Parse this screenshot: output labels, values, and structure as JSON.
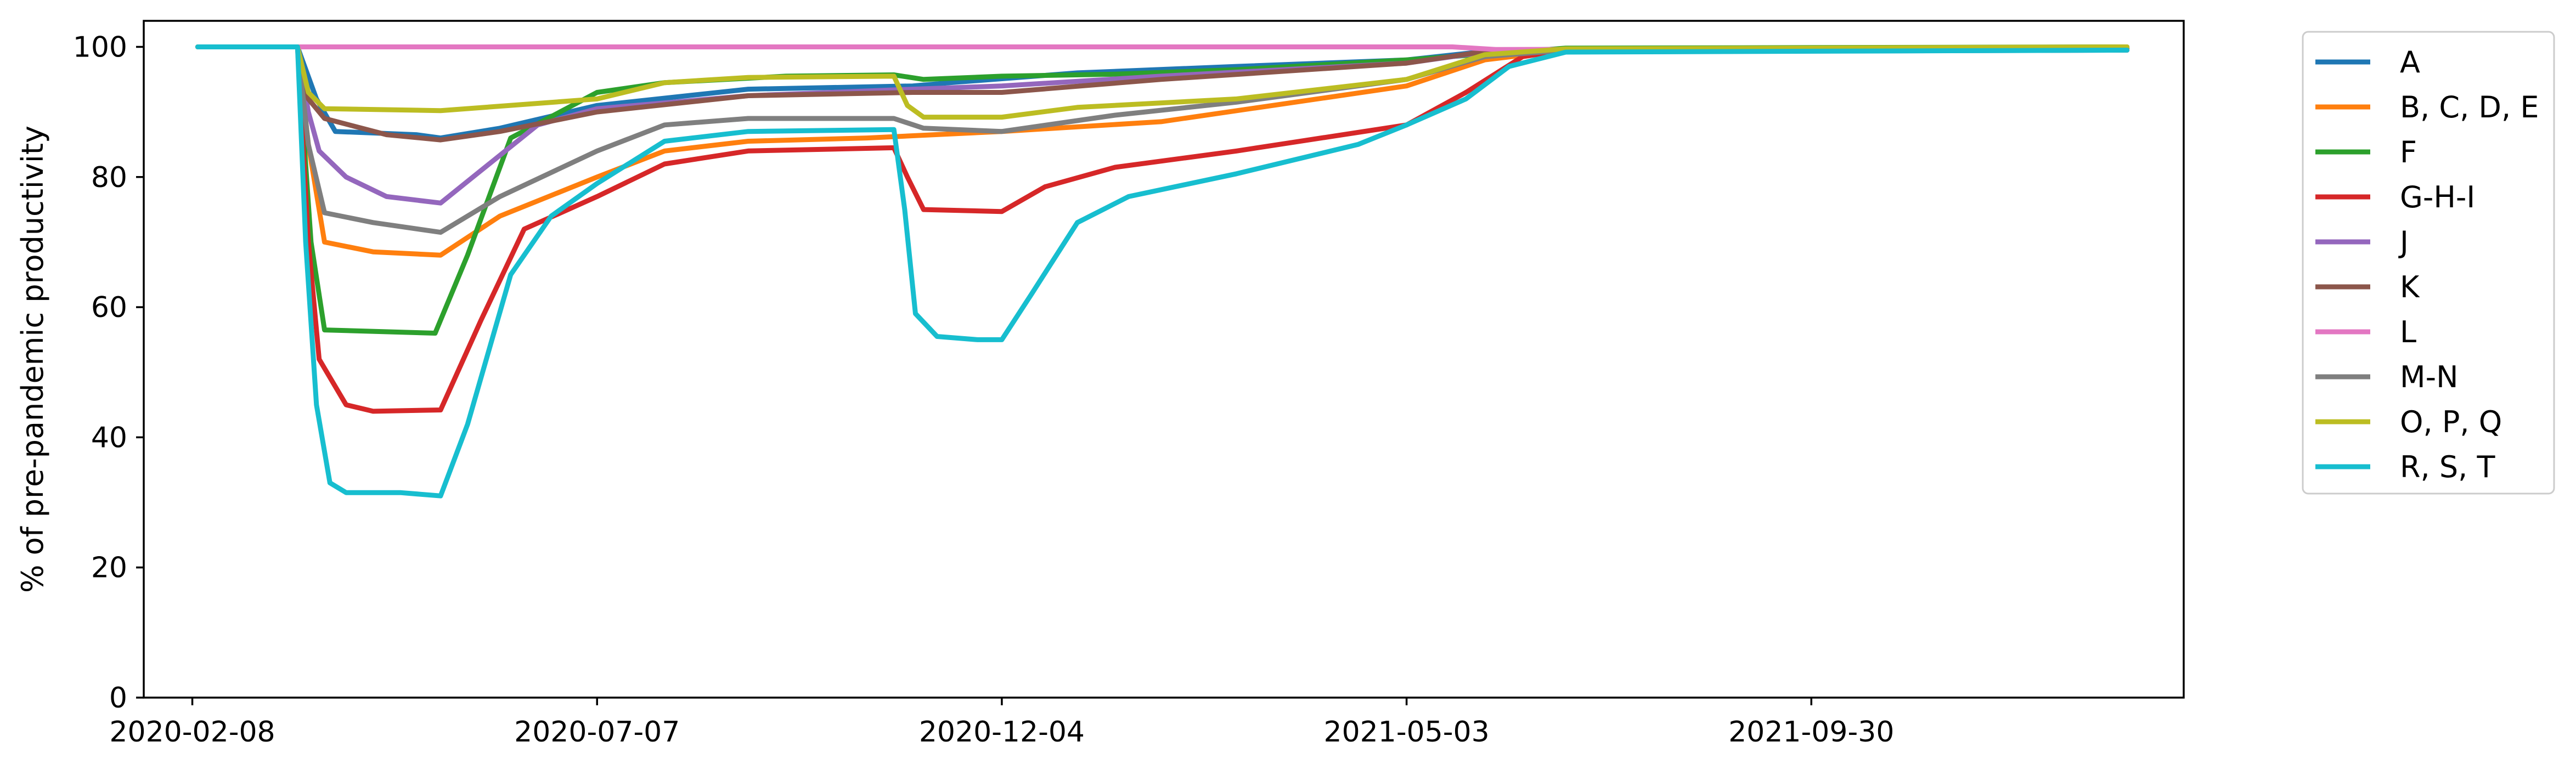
{
  "chart_data": {
    "type": "line",
    "title": "",
    "xlabel": "",
    "ylabel": "% of pre-pandemic productivity",
    "ylim": [
      0,
      104
    ],
    "xlim": [
      "2020-01-21",
      "2022-02-15"
    ],
    "grid": false,
    "legend_position": "outside-right",
    "x_ticks": [
      "2020-02-08",
      "2020-07-07",
      "2020-12-04",
      "2021-05-03",
      "2021-09-30"
    ],
    "y_ticks": [
      0,
      20,
      40,
      60,
      80,
      100
    ],
    "series": [
      {
        "name": "A",
        "color": "#1f77b4",
        "points": [
          [
            "2020-02-10",
            100
          ],
          [
            "2020-03-18",
            100
          ],
          [
            "2020-03-25",
            92
          ],
          [
            "2020-04-01",
            87
          ],
          [
            "2020-05-01",
            86.5
          ],
          [
            "2020-05-10",
            86
          ],
          [
            "2020-06-01",
            87.5
          ],
          [
            "2020-07-07",
            91
          ],
          [
            "2020-09-01",
            93.5
          ],
          [
            "2020-11-01",
            94
          ],
          [
            "2020-11-15",
            94.5
          ],
          [
            "2021-01-01",
            96
          ],
          [
            "2021-03-01",
            97
          ],
          [
            "2021-05-03",
            98
          ],
          [
            "2021-06-01",
            99.3
          ],
          [
            "2021-07-01",
            99.7
          ],
          [
            "2022-01-25",
            99.7
          ]
        ]
      },
      {
        "name": "B, C, D, E",
        "color": "#ff7f0e",
        "points": [
          [
            "2020-02-10",
            100
          ],
          [
            "2020-03-18",
            100
          ],
          [
            "2020-03-22",
            85
          ],
          [
            "2020-03-28",
            70
          ],
          [
            "2020-04-15",
            68.5
          ],
          [
            "2020-05-10",
            68
          ],
          [
            "2020-06-01",
            74
          ],
          [
            "2020-07-07",
            80
          ],
          [
            "2020-08-01",
            84
          ],
          [
            "2020-09-01",
            85.5
          ],
          [
            "2020-10-15",
            86
          ],
          [
            "2020-12-04",
            87
          ],
          [
            "2021-02-01",
            88.5
          ],
          [
            "2021-05-03",
            94
          ],
          [
            "2021-06-01",
            98
          ],
          [
            "2021-07-01",
            99.5
          ],
          [
            "2022-01-25",
            99.8
          ]
        ]
      },
      {
        "name": "F",
        "color": "#2ca02c",
        "points": [
          [
            "2020-02-10",
            100
          ],
          [
            "2020-03-18",
            100
          ],
          [
            "2020-03-23",
            70
          ],
          [
            "2020-03-28",
            56.5
          ],
          [
            "2020-05-08",
            56
          ],
          [
            "2020-05-20",
            68
          ],
          [
            "2020-06-05",
            86
          ],
          [
            "2020-07-07",
            93
          ],
          [
            "2020-08-01",
            94.5
          ],
          [
            "2020-09-15",
            95.5
          ],
          [
            "2020-10-25",
            95.7
          ],
          [
            "2020-11-05",
            95
          ],
          [
            "2020-12-04",
            95.5
          ],
          [
            "2021-01-15",
            95.8
          ],
          [
            "2021-03-01",
            96.5
          ],
          [
            "2021-05-03",
            98
          ],
          [
            "2021-07-01",
            99.8
          ],
          [
            "2022-01-25",
            100
          ]
        ]
      },
      {
        "name": "G-H-I",
        "color": "#d62728",
        "points": [
          [
            "2020-02-10",
            100
          ],
          [
            "2020-03-18",
            100
          ],
          [
            "2020-03-22",
            70
          ],
          [
            "2020-03-26",
            52
          ],
          [
            "2020-04-05",
            45
          ],
          [
            "2020-04-15",
            44
          ],
          [
            "2020-05-10",
            44.2
          ],
          [
            "2020-05-25",
            58
          ],
          [
            "2020-06-10",
            72
          ],
          [
            "2020-07-07",
            77
          ],
          [
            "2020-08-01",
            82
          ],
          [
            "2020-09-01",
            84
          ],
          [
            "2020-10-25",
            84.5
          ],
          [
            "2020-10-30",
            80
          ],
          [
            "2020-11-05",
            75
          ],
          [
            "2020-12-04",
            74.7
          ],
          [
            "2020-12-20",
            78.5
          ],
          [
            "2021-01-15",
            81.5
          ],
          [
            "2021-03-01",
            84
          ],
          [
            "2021-05-03",
            88
          ],
          [
            "2021-05-25",
            93
          ],
          [
            "2021-06-15",
            98.5
          ],
          [
            "2021-07-01",
            99.5
          ],
          [
            "2022-01-25",
            99.8
          ]
        ]
      },
      {
        "name": "J",
        "color": "#9467bd",
        "points": [
          [
            "2020-02-10",
            100
          ],
          [
            "2020-03-18",
            100
          ],
          [
            "2020-03-22",
            90
          ],
          [
            "2020-03-26",
            84
          ],
          [
            "2020-04-05",
            80
          ],
          [
            "2020-04-20",
            77
          ],
          [
            "2020-05-10",
            76
          ],
          [
            "2020-05-25",
            81
          ],
          [
            "2020-06-15",
            88
          ],
          [
            "2020-07-07",
            90.5
          ],
          [
            "2020-09-01",
            92.5
          ],
          [
            "2020-11-01",
            93.5
          ],
          [
            "2020-12-04",
            94
          ],
          [
            "2021-02-01",
            95.5
          ],
          [
            "2021-05-03",
            97.5
          ],
          [
            "2021-06-01",
            99.2
          ],
          [
            "2022-01-25",
            99.5
          ]
        ]
      },
      {
        "name": "K",
        "color": "#8c564b",
        "points": [
          [
            "2020-02-10",
            100
          ],
          [
            "2020-03-18",
            100
          ],
          [
            "2020-03-22",
            92
          ],
          [
            "2020-03-28",
            89
          ],
          [
            "2020-04-20",
            86.5
          ],
          [
            "2020-05-10",
            85.7
          ],
          [
            "2020-06-01",
            87
          ],
          [
            "2020-07-07",
            90
          ],
          [
            "2020-09-01",
            92.5
          ],
          [
            "2020-11-01",
            93
          ],
          [
            "2020-12-04",
            93
          ],
          [
            "2021-02-01",
            95
          ],
          [
            "2021-05-03",
            97.5
          ],
          [
            "2021-06-01",
            99.3
          ],
          [
            "2022-01-25",
            99.5
          ]
        ]
      },
      {
        "name": "L",
        "color": "#e377c2",
        "points": [
          [
            "2020-02-10",
            100
          ],
          [
            "2021-05-20",
            100
          ],
          [
            "2021-06-05",
            99.6
          ],
          [
            "2022-01-25",
            99.7
          ]
        ]
      },
      {
        "name": "M-N",
        "color": "#7f7f7f",
        "points": [
          [
            "2020-02-10",
            100
          ],
          [
            "2020-03-18",
            100
          ],
          [
            "2020-03-22",
            85
          ],
          [
            "2020-03-28",
            74.5
          ],
          [
            "2020-04-15",
            73
          ],
          [
            "2020-05-10",
            71.5
          ],
          [
            "2020-06-01",
            77
          ],
          [
            "2020-07-07",
            84
          ],
          [
            "2020-08-01",
            88
          ],
          [
            "2020-09-01",
            89
          ],
          [
            "2020-10-25",
            89
          ],
          [
            "2020-11-05",
            87.5
          ],
          [
            "2020-12-04",
            87
          ],
          [
            "2021-01-15",
            89.5
          ],
          [
            "2021-03-01",
            91.5
          ],
          [
            "2021-05-03",
            95
          ],
          [
            "2021-06-01",
            98.5
          ],
          [
            "2021-07-01",
            99.5
          ],
          [
            "2022-01-25",
            99.8
          ]
        ]
      },
      {
        "name": "O, P, Q",
        "color": "#bcbd22",
        "points": [
          [
            "2020-02-10",
            100
          ],
          [
            "2020-03-18",
            100
          ],
          [
            "2020-03-22",
            93
          ],
          [
            "2020-03-28",
            90.5
          ],
          [
            "2020-05-10",
            90.2
          ],
          [
            "2020-07-07",
            92
          ],
          [
            "2020-08-01",
            94.5
          ],
          [
            "2020-09-01",
            95.3
          ],
          [
            "2020-10-25",
            95.5
          ],
          [
            "2020-10-30",
            91
          ],
          [
            "2020-11-05",
            89.2
          ],
          [
            "2020-12-04",
            89.2
          ],
          [
            "2021-01-01",
            90.7
          ],
          [
            "2021-03-01",
            92
          ],
          [
            "2021-05-03",
            95
          ],
          [
            "2021-06-01",
            98.8
          ],
          [
            "2021-07-01",
            99.7
          ],
          [
            "2022-01-25",
            100
          ]
        ]
      },
      {
        "name": "R, S, T",
        "color": "#17becf",
        "points": [
          [
            "2020-02-10",
            100
          ],
          [
            "2020-03-18",
            100
          ],
          [
            "2020-03-21",
            70
          ],
          [
            "2020-03-25",
            45
          ],
          [
            "2020-03-30",
            33
          ],
          [
            "2020-04-05",
            31.5
          ],
          [
            "2020-04-25",
            31.5
          ],
          [
            "2020-05-10",
            31
          ],
          [
            "2020-05-20",
            42
          ],
          [
            "2020-06-05",
            65
          ],
          [
            "2020-06-20",
            74
          ],
          [
            "2020-07-07",
            79
          ],
          [
            "2020-08-01",
            85.5
          ],
          [
            "2020-09-01",
            87
          ],
          [
            "2020-10-25",
            87.3
          ],
          [
            "2020-10-29",
            75
          ],
          [
            "2020-11-02",
            59
          ],
          [
            "2020-11-10",
            55.5
          ],
          [
            "2020-11-25",
            55
          ],
          [
            "2020-12-04",
            55
          ],
          [
            "2020-12-15",
            62
          ],
          [
            "2021-01-01",
            73
          ],
          [
            "2021-01-20",
            77
          ],
          [
            "2021-03-01",
            80.5
          ],
          [
            "2021-04-15",
            85
          ],
          [
            "2021-05-03",
            88
          ],
          [
            "2021-05-25",
            92
          ],
          [
            "2021-06-10",
            97
          ],
          [
            "2021-07-01",
            99.2
          ],
          [
            "2022-01-25",
            99.5
          ]
        ]
      }
    ]
  }
}
